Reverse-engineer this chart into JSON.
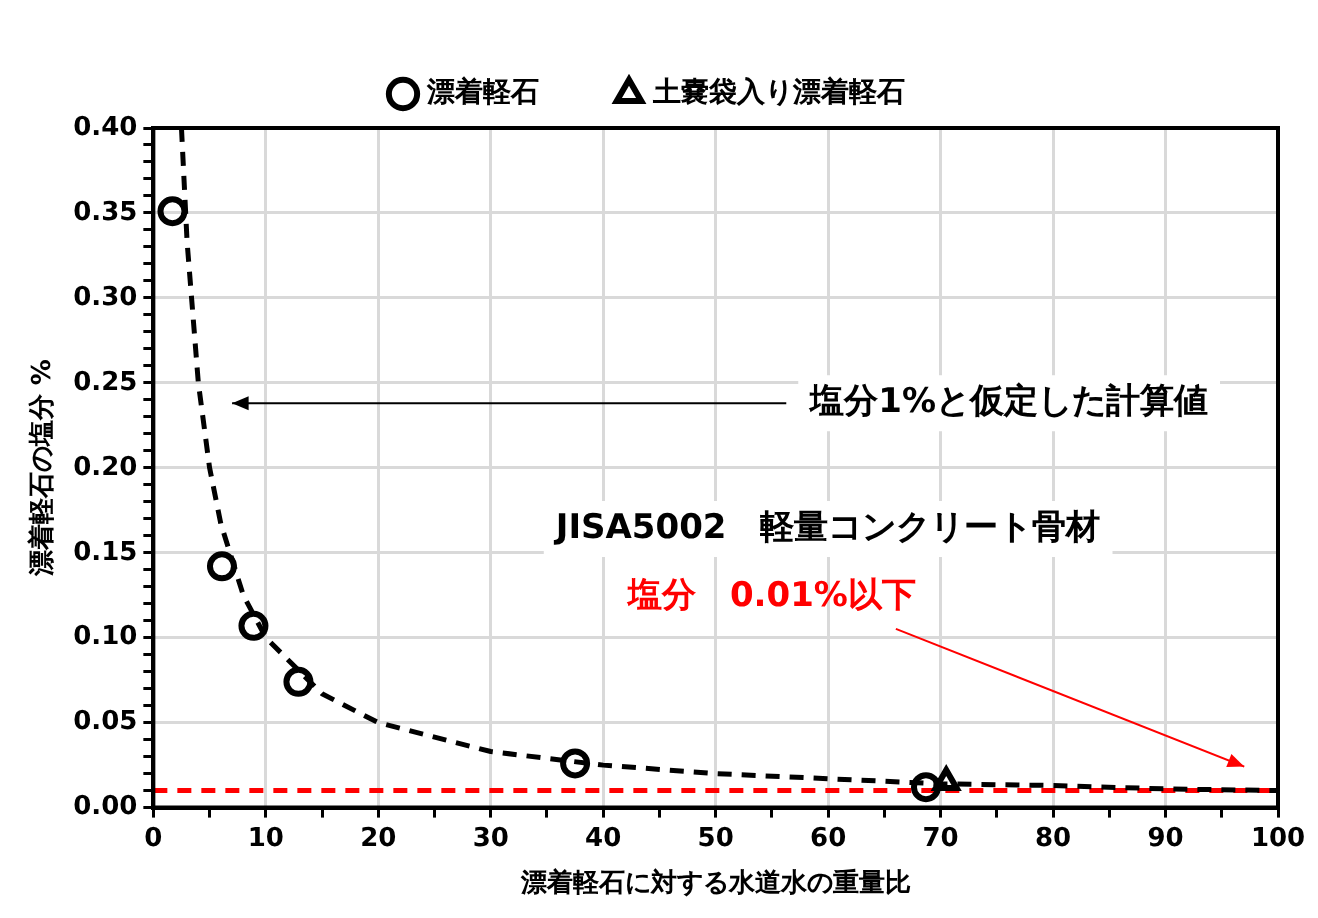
{
  "chart_data": {
    "type": "scatter",
    "xlabel": "漂着軽石に対する水道水の重量比",
    "ylabel": "漂着軽石の塩分 %",
    "xlim": [
      0,
      100
    ],
    "ylim": [
      0,
      0.4
    ],
    "xticks": [
      0,
      {
        "value": 5,
        "label": null
      },
      10,
      {
        "value": 15,
        "label": null
      },
      20,
      {
        "value": 25,
        "label": null
      },
      30,
      {
        "value": 35,
        "label": null
      },
      40,
      {
        "value": 45,
        "label": null
      },
      50,
      {
        "value": 55,
        "label": null
      },
      60,
      {
        "value": 65,
        "label": null
      },
      70,
      {
        "value": 75,
        "label": null
      },
      80,
      {
        "value": 85,
        "label": null
      },
      90,
      {
        "value": 95,
        "label": null
      },
      100
    ],
    "yticks": [
      {
        "value": 0,
        "label": "0.00"
      },
      {
        "value": 0.01,
        "label": null
      },
      {
        "value": 0.02,
        "label": null
      },
      {
        "value": 0.03,
        "label": null
      },
      {
        "value": 0.04,
        "label": null
      },
      0.05,
      {
        "value": 0.06,
        "label": null
      },
      {
        "value": 0.07,
        "label": null
      },
      {
        "value": 0.08,
        "label": null
      },
      {
        "value": 0.09,
        "label": null
      },
      {
        "value": 0.1,
        "label": "0.10"
      },
      {
        "value": 0.11,
        "label": null
      },
      {
        "value": 0.12,
        "label": null
      },
      {
        "value": 0.13,
        "label": null
      },
      {
        "value": 0.14,
        "label": null
      },
      0.15,
      {
        "value": 0.16,
        "label": null
      },
      {
        "value": 0.17,
        "label": null
      },
      {
        "value": 0.18,
        "label": null
      },
      {
        "value": 0.19,
        "label": null
      },
      {
        "value": 0.2,
        "label": "0.20"
      },
      {
        "value": 0.21,
        "label": null
      },
      {
        "value": 0.22,
        "label": null
      },
      {
        "value": 0.23,
        "label": null
      },
      {
        "value": 0.24,
        "label": null
      },
      0.25,
      {
        "value": 0.26,
        "label": null
      },
      {
        "value": 0.27,
        "label": null
      },
      {
        "value": 0.28,
        "label": null
      },
      {
        "value": 0.29,
        "label": null
      },
      {
        "value": 0.3,
        "label": "0.30"
      },
      {
        "value": 0.31,
        "label": null
      },
      {
        "value": 0.32,
        "label": null
      },
      {
        "value": 0.33,
        "label": null
      },
      {
        "value": 0.34,
        "label": null
      },
      0.35,
      {
        "value": 0.36,
        "label": null
      },
      {
        "value": 0.37,
        "label": null
      },
      {
        "value": 0.38,
        "label": null
      },
      {
        "value": 0.39,
        "label": null
      },
      {
        "value": 0.4,
        "label": "0.40"
      }
    ],
    "grid": true,
    "legend": "top",
    "series": [
      {
        "type": "line",
        "color": "#000000",
        "line_style": "dashed",
        "marker": "none",
        "x": [
          2.5,
          3,
          4,
          5,
          6,
          8,
          10,
          15,
          20,
          30,
          40,
          50,
          60,
          70,
          80,
          90,
          100
        ],
        "values": [
          0.4,
          0.333,
          0.25,
          0.2,
          0.167,
          0.125,
          0.1,
          0.067,
          0.05,
          0.033,
          0.025,
          0.02,
          0.017,
          0.014,
          0.013,
          0.011,
          0.01
        ]
      },
      {
        "name": "漂着軽石",
        "type": "scatter",
        "color": "#000000",
        "marker": "circle",
        "x": [
          1.7,
          6.1,
          8.9,
          12.9,
          37.5,
          68.7
        ],
        "values": [
          0.351,
          0.142,
          0.107,
          0.074,
          0.026,
          0.012
        ]
      },
      {
        "name": "土嚢袋入り漂着軽石",
        "type": "scatter",
        "color": "#000000",
        "marker": "triangle",
        "x": [
          70.5
        ],
        "values": [
          0.015
        ]
      }
    ],
    "ref_lines": [
      {
        "axis": "y",
        "value": 0.01,
        "label": "塩分　0.01%以下",
        "color": "#ff0000",
        "line_style": "dashed"
      }
    ],
    "annotations": [
      "塩分1%と仮定した計算値",
      "JISA5002　軽量コンクリート骨材"
    ]
  }
}
